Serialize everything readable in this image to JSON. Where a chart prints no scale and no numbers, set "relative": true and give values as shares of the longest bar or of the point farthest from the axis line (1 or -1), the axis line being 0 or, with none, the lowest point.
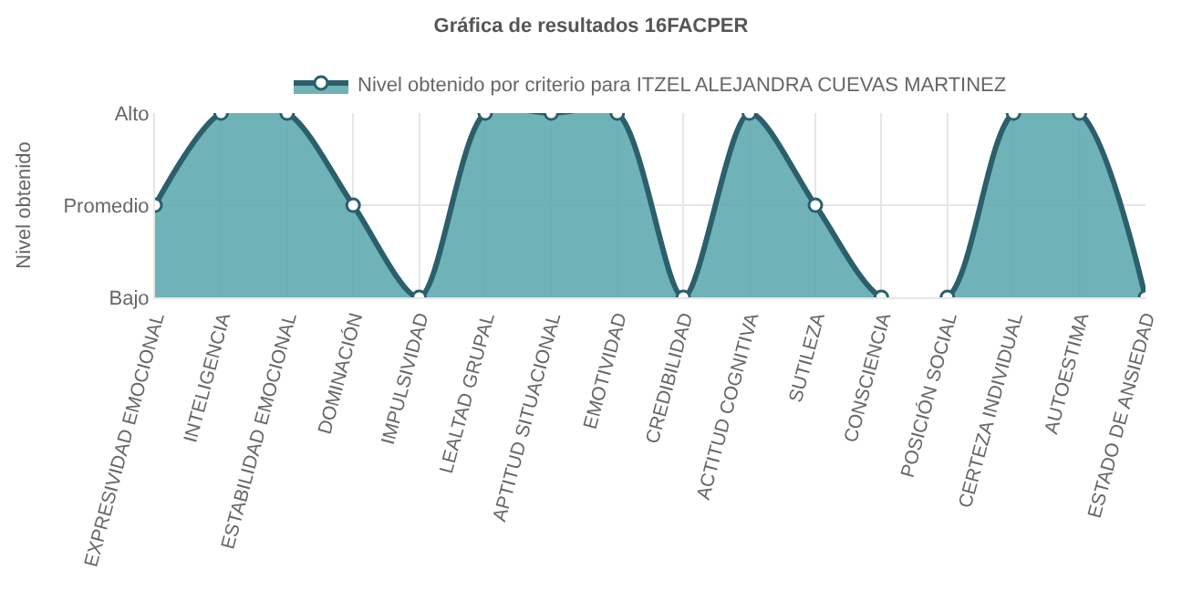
{
  "chart_data": {
    "type": "area",
    "title": "Gráfica de resultados 16FACPER",
    "ylabel": "Nivel obtenido",
    "categories": [
      "EXPRESIVIDAD EMOCIONAL",
      "INTELIGENCIA",
      "ESTABILIDAD EMOCIONAL",
      "DOMINACIÓN",
      "IMPULSIVIDAD",
      "LEALTAD GRUPAL",
      "APTITUD SITUACIONAL",
      "EMOTIVIDAD",
      "CREDIBILIDAD",
      "ACTITUD COGNITIVA",
      "SUTILEZA",
      "CONSCIENCIA",
      "POSICIÓN SOCIAL",
      "CERTEZA INDIVIDUAL",
      "AUTOESTIMA",
      "ESTADO DE ANSIEDAD"
    ],
    "series": [
      {
        "name": "Nivel obtenido por criterio para ITZEL ALEJANDRA CUEVAS MARTINEZ",
        "color": "#2b5f6b",
        "values": [
          0.5,
          1,
          1,
          0.5,
          0,
          1,
          1,
          1,
          0,
          1,
          0.5,
          0,
          0,
          1,
          1,
          0
        ]
      }
    ],
    "relative": true,
    "annotations": [
      "Bajo",
      "Promedio",
      "Alto"
    ],
    "grid": true,
    "legend": "top",
    "marker": "circle",
    "line_style": "solid"
  }
}
